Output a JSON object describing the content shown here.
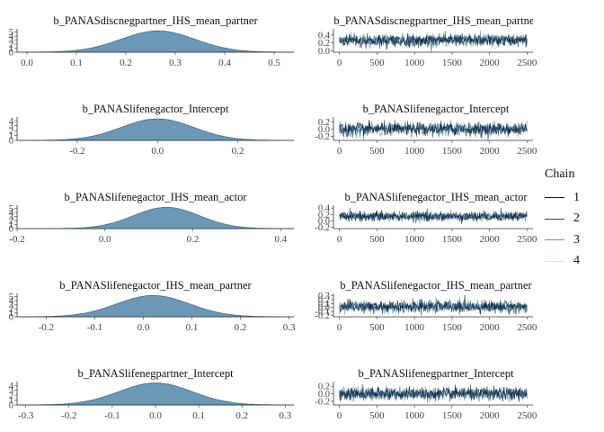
{
  "legend": {
    "title": "Chain",
    "items": [
      {
        "label": "1",
        "color": "#0f2236"
      },
      {
        "label": "2",
        "color": "#1a4e6e"
      },
      {
        "label": "3",
        "color": "#5d95b6"
      },
      {
        "label": "4",
        "color": "#d6e6f1"
      }
    ]
  },
  "chart_data": [
    {
      "type": "area",
      "title": "b_PANASdiscnegpartner_IHS_mean_partner",
      "panel": "density",
      "xlim": [
        -0.02,
        0.54
      ],
      "xticks": [
        0.0,
        0.1,
        0.2,
        0.3,
        0.4,
        0.5
      ],
      "xtick_labels": [
        "0.0",
        "0.1",
        "0.2",
        "0.3",
        "0.4",
        "0.5"
      ],
      "ylim": [
        0,
        5.6
      ],
      "yticks": [
        0,
        1,
        2,
        3,
        4,
        5
      ],
      "ytick_labels": [
        "0",
        "1",
        "2",
        "3",
        "4",
        "5"
      ],
      "density": {
        "mean": 0.265,
        "sd": 0.075,
        "peak": 5.3
      },
      "fill": "#6b98b5"
    },
    {
      "type": "line",
      "title": "b_PANASdiscnegpartner_IHS_mean_partner",
      "panel": "trace",
      "iterations": 2500,
      "xlim": [
        -80,
        2580
      ],
      "xticks": [
        0,
        500,
        1000,
        1500,
        2000,
        2500
      ],
      "xtick_labels": [
        "0",
        "500",
        "1000",
        "1500",
        "2000",
        "2500"
      ],
      "ylim": [
        -0.03,
        0.53
      ],
      "yticks": [
        0.0,
        0.2,
        0.4
      ],
      "ytick_labels": [
        "0.0",
        "0.2",
        "0.4"
      ],
      "mean": 0.265,
      "sd": 0.075
    },
    {
      "type": "area",
      "title": "b_PANASlifenegactor_Intercept",
      "panel": "density",
      "xlim": [
        -0.35,
        0.34
      ],
      "xticks": [
        -0.2,
        0.0,
        0.2
      ],
      "xtick_labels": [
        "-0.2",
        "0.0",
        "0.2"
      ],
      "ylim": [
        0,
        4.6
      ],
      "yticks": [
        0,
        1,
        2,
        3,
        4
      ],
      "ytick_labels": [
        "0",
        "1",
        "2",
        "3",
        "4"
      ],
      "density": {
        "mean": 0.0,
        "sd": 0.09,
        "peak": 4.4
      },
      "fill": "#6b98b5"
    },
    {
      "type": "line",
      "title": "b_PANASlifenegactor_Intercept",
      "panel": "trace",
      "iterations": 2500,
      "xlim": [
        -80,
        2580
      ],
      "xticks": [
        0,
        500,
        1000,
        1500,
        2000,
        2500
      ],
      "xtick_labels": [
        "0",
        "500",
        "1000",
        "1500",
        "2000",
        "2500"
      ],
      "ylim": [
        -0.32,
        0.32
      ],
      "yticks": [
        -0.2,
        0.0,
        0.2
      ],
      "ytick_labels": [
        "-0.2",
        "0.0",
        "0.2"
      ],
      "mean": 0.0,
      "sd": 0.09
    },
    {
      "type": "area",
      "title": "b_PANASlifenegactor_IHS_mean_actor",
      "panel": "density",
      "xlim": [
        -0.2,
        0.43
      ],
      "xticks": [
        -0.2,
        0.0,
        0.2,
        0.4
      ],
      "xtick_labels": [
        "-0.2",
        "0.0",
        "0.2",
        "0.4"
      ],
      "ylim": [
        0,
        5.6
      ],
      "yticks": [
        0,
        1,
        2,
        3,
        4,
        5
      ],
      "ytick_labels": [
        "0",
        "1",
        "2",
        "3",
        "4",
        "5"
      ],
      "density": {
        "mean": 0.14,
        "sd": 0.075,
        "peak": 5.3
      },
      "fill": "#6b98b5"
    },
    {
      "type": "line",
      "title": "b_PANASlifenegactor_IHS_mean_actor",
      "panel": "trace",
      "iterations": 2500,
      "xlim": [
        -80,
        2580
      ],
      "xticks": [
        0,
        500,
        1000,
        1500,
        2000,
        2500
      ],
      "xtick_labels": [
        "0",
        "500",
        "1000",
        "1500",
        "2000",
        "2500"
      ],
      "ylim": [
        -0.24,
        0.46
      ],
      "yticks": [
        -0.2,
        0.0,
        0.2,
        0.4
      ],
      "ytick_labels": [
        "-0.2",
        "0.0",
        "0.2",
        "0.4"
      ],
      "mean": 0.14,
      "sd": 0.075
    },
    {
      "type": "area",
      "title": "b_PANASlifenegactor_IHS_mean_partner",
      "panel": "density",
      "xlim": [
        -0.26,
        0.31
      ],
      "xticks": [
        -0.2,
        -0.1,
        0.0,
        0.1,
        0.2,
        0.3
      ],
      "xtick_labels": [
        "-0.2",
        "-0.1",
        "0.0",
        "0.1",
        "0.2",
        "0.3"
      ],
      "ylim": [
        0,
        5.6
      ],
      "yticks": [
        0,
        1,
        2,
        3,
        4,
        5
      ],
      "ytick_labels": [
        "0",
        "1",
        "2",
        "3",
        "4",
        "5"
      ],
      "density": {
        "mean": 0.02,
        "sd": 0.075,
        "peak": 5.3
      },
      "fill": "#6b98b5"
    },
    {
      "type": "line",
      "title": "b_PANASlifenegactor_IHS_mean_partner",
      "panel": "trace",
      "iterations": 2500,
      "xlim": [
        -80,
        2580
      ],
      "xticks": [
        0,
        500,
        1000,
        1500,
        2000,
        2500
      ],
      "xtick_labels": [
        "0",
        "500",
        "1000",
        "1500",
        "2000",
        "2500"
      ],
      "ylim": [
        -0.24,
        0.34
      ],
      "yticks": [
        -0.2,
        -0.1,
        0.0,
        0.1,
        0.2,
        0.3
      ],
      "ytick_labels": [
        "-0.2",
        "-0.1",
        "0.0",
        "0.1",
        "0.2",
        "0.3"
      ],
      "mean": 0.02,
      "sd": 0.075
    },
    {
      "type": "area",
      "title": "b_PANASlifenegpartner_Intercept",
      "panel": "density",
      "xlim": [
        -0.32,
        0.32
      ],
      "xticks": [
        -0.3,
        -0.2,
        -0.1,
        0.0,
        0.1,
        0.2,
        0.3
      ],
      "xtick_labels": [
        "-0.3",
        "-0.2",
        "-0.1",
        "0.0",
        "0.1",
        "0.2",
        "0.3"
      ],
      "ylim": [
        0,
        4.6
      ],
      "yticks": [
        0,
        1,
        2,
        3,
        4
      ],
      "ytick_labels": [
        "0",
        "1",
        "2",
        "3",
        "4"
      ],
      "density": {
        "mean": 0.0,
        "sd": 0.085,
        "peak": 4.5
      },
      "fill": "#6b98b5"
    },
    {
      "type": "line",
      "title": "b_PANASlifenegpartner_Intercept",
      "panel": "trace",
      "iterations": 2500,
      "xlim": [
        -80,
        2580
      ],
      "xticks": [
        0,
        500,
        1000,
        1500,
        2000,
        2500
      ],
      "xtick_labels": [
        "0",
        "500",
        "1000",
        "1500",
        "2000",
        "2500"
      ],
      "ylim": [
        -0.3,
        0.3
      ],
      "yticks": [
        -0.2,
        0.0,
        0.2
      ],
      "ytick_labels": [
        "-0.2",
        "0.0",
        "0.2"
      ],
      "mean": 0.0,
      "sd": 0.085
    }
  ]
}
